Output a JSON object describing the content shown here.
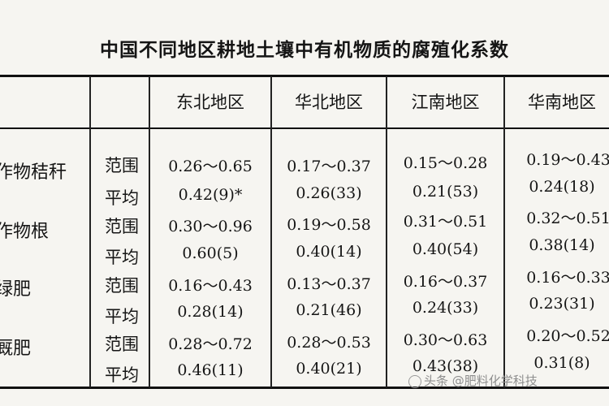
{
  "title": "中国不同地区耕地土壤中有机物质的腐殖化系数",
  "regions": [
    "东北地区",
    "华北地区",
    "江南地区",
    "华南地区"
  ],
  "rows": [
    {
      "crop": "作物秸秆",
      "range_label": "范围",
      "avg_label": "平均",
      "range": [
        "0.26～0.65",
        "0.17～0.37",
        "0.15～0.28",
        "0.19～0.43"
      ],
      "avg": [
        "0.42(9)*",
        "0.26(33)",
        "0.21(53)",
        "0.24(18)"
      ]
    },
    {
      "crop": "作物根",
      "range_label": "范围",
      "avg_label": "平均",
      "range": [
        "0.30～0.96",
        "0.19～0.58",
        "0.31～0.51",
        "0.32～0.51"
      ],
      "avg": [
        "0.60(5)",
        "0.40(14)",
        "0.40(54)",
        "0.38(14)"
      ]
    },
    {
      "crop": "绿肥",
      "range_label": "范围",
      "avg_label": "平均",
      "range": [
        "0.16～0.43",
        "0.13～0.37",
        "0.16～0.37",
        "0.16～0.33"
      ],
      "avg": [
        "0.28(14)",
        "0.21(46)",
        "0.24(33)",
        "0.23(31)"
      ]
    },
    {
      "crop": "厩肥",
      "range_label": "范围",
      "avg_label": "平均",
      "range": [
        "0.28～0.72",
        "0.28～0.53",
        "0.30～0.63",
        "0.20～0.52"
      ],
      "avg": [
        "0.46(11)",
        "0.40(21)",
        "0.43(38)",
        "0.31(8)"
      ]
    }
  ],
  "watermark": "头条 @肥料化学科技"
}
